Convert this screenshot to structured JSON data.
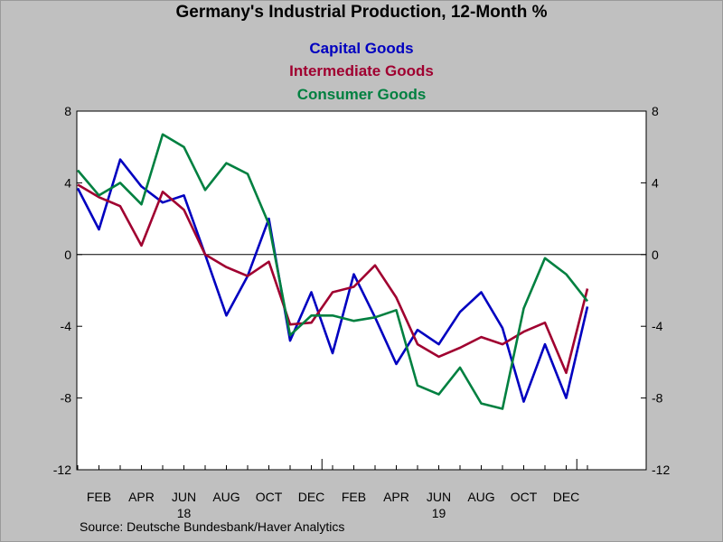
{
  "chart_data": {
    "type": "line",
    "title": "Germany's Industrial Production, 12-Month %",
    "source": "Source:  Deutsche Bundesbank/Haver Analytics",
    "ylim": [
      -12,
      8
    ],
    "yticks": [
      8,
      4,
      0,
      -4,
      -8,
      -12
    ],
    "ytick_labels": [
      "8",
      "4",
      "0",
      "-4",
      "-8",
      "-12"
    ],
    "zero_line": true,
    "x_start": "2018-01",
    "x_labels": [
      {
        "month": 1,
        "label": "FEB"
      },
      {
        "month": 3,
        "label": "APR"
      },
      {
        "month": 5,
        "label": "JUN"
      },
      {
        "month": 7,
        "label": "AUG"
      },
      {
        "month": 9,
        "label": "OCT"
      },
      {
        "month": 11,
        "label": "DEC"
      },
      {
        "month": 13,
        "label": "FEB"
      },
      {
        "month": 15,
        "label": "APR"
      },
      {
        "month": 17,
        "label": "JUN"
      },
      {
        "month": 19,
        "label": "AUG"
      },
      {
        "month": 21,
        "label": "OCT"
      },
      {
        "month": 23,
        "label": "DEC"
      }
    ],
    "year_labels": [
      {
        "month": 5,
        "label": "18"
      },
      {
        "month": 17,
        "label": "19"
      }
    ],
    "series": [
      {
        "name": "Capital Goods",
        "color": "#0000c0",
        "values": [
          3.7,
          1.4,
          5.3,
          3.8,
          2.9,
          3.3,
          0.0,
          -3.4,
          -1.2,
          2.0,
          -4.8,
          -2.1,
          -5.5,
          -1.1,
          -3.5,
          -6.1,
          -4.2,
          -5.0,
          -3.2,
          -2.1,
          -4.1,
          -8.2,
          -5.0,
          -8.0,
          -2.9
        ]
      },
      {
        "name": "Intermediate Goods",
        "color": "#a00030",
        "values": [
          3.9,
          3.2,
          2.7,
          0.5,
          3.5,
          2.5,
          0.0,
          -0.7,
          -1.2,
          -0.4,
          -3.9,
          -3.8,
          -2.1,
          -1.8,
          -0.6,
          -2.4,
          -5.0,
          -5.7,
          -5.2,
          -4.6,
          -5.0,
          -4.3,
          -3.8,
          -6.6,
          -1.9
        ]
      },
      {
        "name": "Consumer Goods",
        "color": "#008040",
        "values": [
          4.7,
          3.3,
          4.0,
          2.8,
          6.7,
          6.0,
          3.6,
          5.1,
          4.5,
          1.7,
          -4.5,
          -3.4,
          -3.4,
          -3.7,
          -3.5,
          -3.1,
          -7.3,
          -7.8,
          -6.3,
          -8.3,
          -8.6,
          -3.0,
          -0.2,
          -1.1,
          -2.6
        ]
      }
    ]
  }
}
